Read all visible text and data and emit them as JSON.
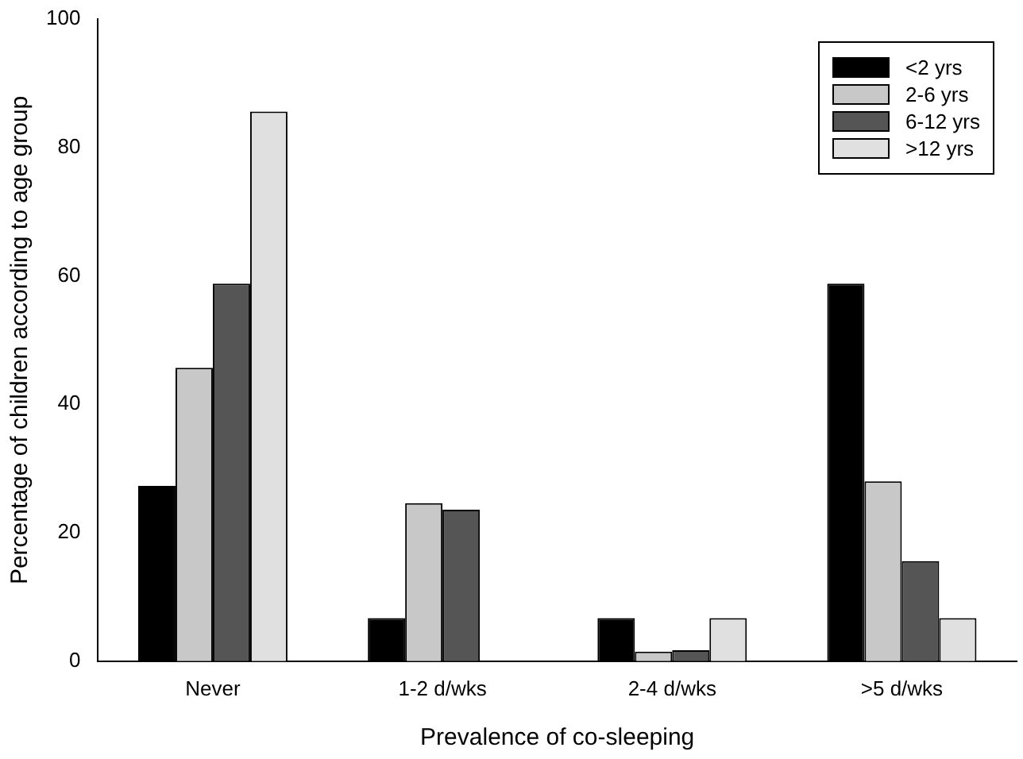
{
  "chart_data": {
    "type": "bar",
    "xlabel": "Prevalence of co-sleeping",
    "ylabel": "Percentage of children according to age group",
    "categories": [
      "Never",
      "1-2 d/wks",
      "2-4 d/wks",
      ">5 d/wks"
    ],
    "series": [
      {
        "name": "<2 yrs",
        "color": "#000000",
        "values": [
          27.3,
          6.7,
          6.7,
          58.8
        ]
      },
      {
        "name": "2-6 yrs",
        "color": "#c8c8c8",
        "values": [
          45.7,
          24.6,
          1.5,
          28
        ]
      },
      {
        "name": "6-12 yrs",
        "color": "#555555",
        "values": [
          58.8,
          23.6,
          1.7,
          15.6
        ]
      },
      {
        "name": ">12 yrs",
        "color": "#e0e0e0",
        "values": [
          85.6,
          0,
          6.7,
          6.7
        ]
      }
    ],
    "ylim": [
      0,
      100
    ],
    "yticks": [
      0,
      20,
      40,
      60,
      80,
      100
    ],
    "grid": false,
    "legend": "top right"
  }
}
